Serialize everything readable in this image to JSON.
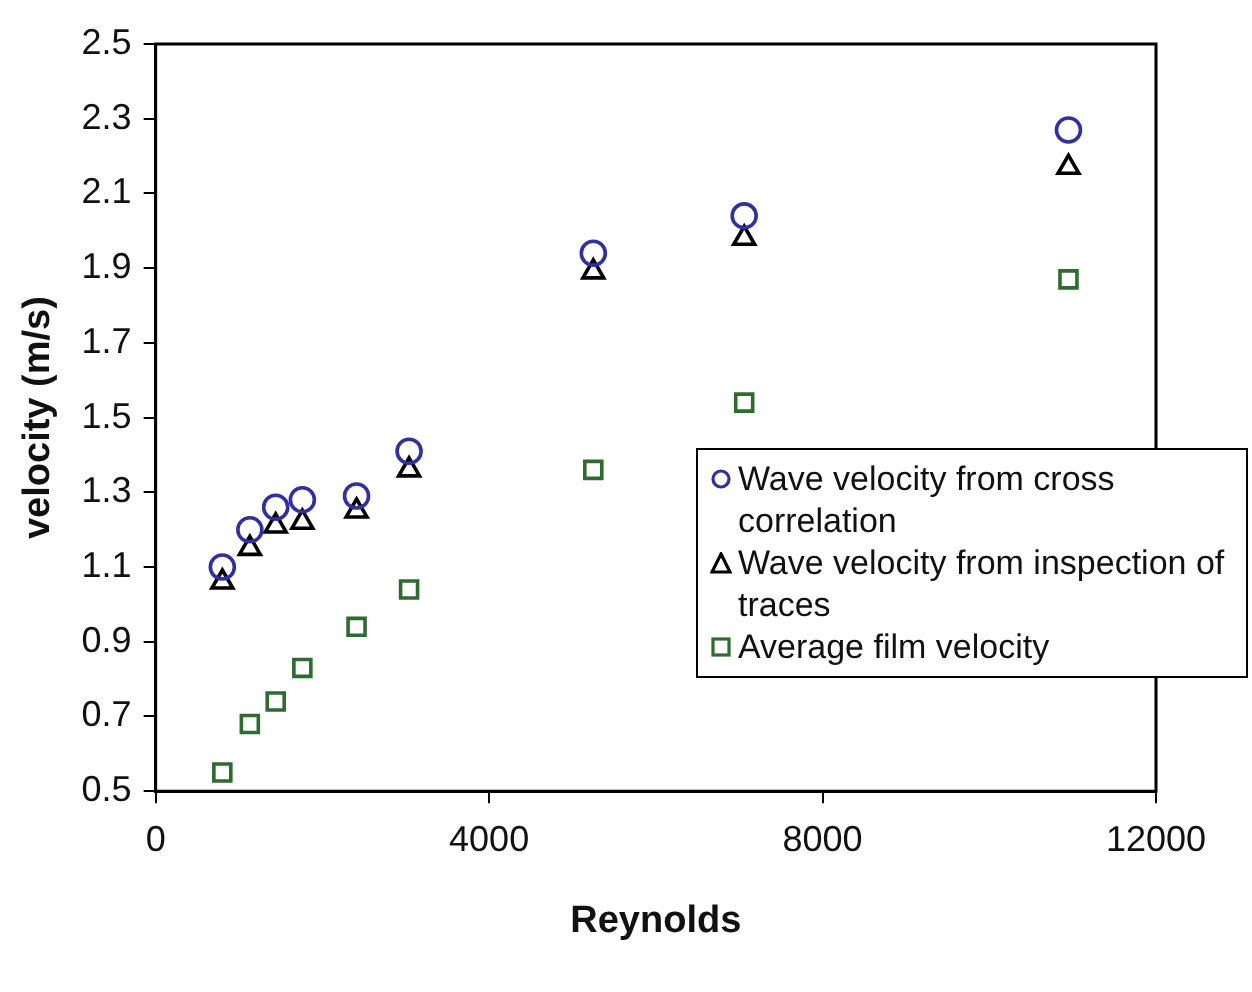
{
  "chart_data": {
    "type": "scatter",
    "xlabel": "Reynolds",
    "ylabel": "velocity (m/s)",
    "x": [
      800,
      1130,
      1440,
      1760,
      2410,
      3040,
      5250,
      7060,
      10950
    ],
    "series": [
      {
        "name": "Wave velocity from cross correlation",
        "color": "#3030a0",
        "marker": "circle",
        "values": [
          1.1,
          1.2,
          1.26,
          1.28,
          1.29,
          1.41,
          1.94,
          2.04,
          2.27
        ]
      },
      {
        "name": "Wave velocity from inspection of traces",
        "color": "#000000",
        "marker": "triangle",
        "values": [
          1.06,
          1.15,
          1.21,
          1.22,
          1.25,
          1.36,
          1.89,
          1.98,
          2.17
        ]
      },
      {
        "name": "Average film velocity",
        "color": "#2e6b2e",
        "marker": "square",
        "values": [
          0.55,
          0.68,
          0.74,
          0.83,
          0.94,
          1.04,
          1.36,
          1.54,
          1.87
        ]
      }
    ],
    "xlim": [
      0,
      12000
    ],
    "xticks": [
      0,
      4000,
      8000,
      12000
    ],
    "ylim": [
      0.5,
      2.5
    ],
    "yticks": [
      {
        "value": 0.5,
        "label": "0.5"
      },
      {
        "value": 0.7,
        "label": "0.7"
      },
      {
        "value": 0.9,
        "label": "0.9"
      },
      {
        "value": 1.1,
        "label": "1.1"
      },
      {
        "value": 1.3,
        "label": "1.3"
      },
      {
        "value": 1.5,
        "label": "1.5"
      },
      {
        "value": 1.7,
        "label": "1.7"
      },
      {
        "value": 1.9,
        "label": "1.9"
      },
      {
        "value": 2.1,
        "label": "2.1"
      },
      {
        "value": 2.3,
        "label": "2.3"
      },
      {
        "value": 2.5,
        "label": "2.5"
      }
    ],
    "legend": "bottom right"
  }
}
